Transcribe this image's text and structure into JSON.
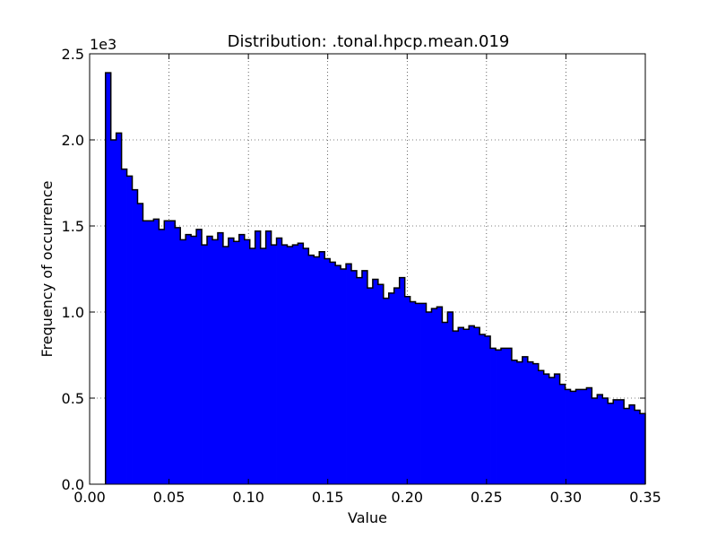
{
  "chart_data": {
    "type": "histogram",
    "title": "Distribution: .tonal.hpcp.mean.019",
    "xlabel": "Value",
    "ylabel": "Frequency of occurrence",
    "y_offset_label": "1e3",
    "xlim": [
      0.0,
      0.35
    ],
    "ylim": [
      0.0,
      2.5
    ],
    "x_ticks": [
      0.0,
      0.05,
      0.1,
      0.15,
      0.2,
      0.25,
      0.3,
      0.35
    ],
    "x_tick_labels": [
      "0.00",
      "0.05",
      "0.10",
      "0.15",
      "0.20",
      "0.25",
      "0.30",
      "0.35"
    ],
    "y_ticks": [
      0.0,
      0.5,
      1.0,
      1.5,
      2.0,
      2.5
    ],
    "y_tick_labels": [
      "0.0",
      "0.5",
      "1.0",
      "1.5",
      "2.0",
      "2.5"
    ],
    "grid": true,
    "fill_color": "#0000ff",
    "edge_color": "#000000",
    "bin_start": 0.01,
    "bin_end": 0.35,
    "values": [
      2.39,
      2.0,
      2.04,
      1.83,
      1.79,
      1.71,
      1.63,
      1.53,
      1.53,
      1.54,
      1.48,
      1.53,
      1.53,
      1.49,
      1.42,
      1.45,
      1.44,
      1.48,
      1.39,
      1.44,
      1.42,
      1.46,
      1.38,
      1.43,
      1.41,
      1.45,
      1.42,
      1.37,
      1.47,
      1.37,
      1.47,
      1.39,
      1.43,
      1.39,
      1.38,
      1.39,
      1.4,
      1.37,
      1.33,
      1.32,
      1.35,
      1.31,
      1.29,
      1.27,
      1.25,
      1.28,
      1.24,
      1.2,
      1.24,
      1.14,
      1.19,
      1.16,
      1.08,
      1.11,
      1.14,
      1.2,
      1.09,
      1.06,
      1.05,
      1.05,
      1.0,
      1.02,
      1.03,
      0.94,
      1.0,
      0.89,
      0.91,
      0.9,
      0.92,
      0.91,
      0.87,
      0.86,
      0.79,
      0.78,
      0.79,
      0.79,
      0.72,
      0.71,
      0.74,
      0.71,
      0.7,
      0.66,
      0.64,
      0.62,
      0.64,
      0.58,
      0.55,
      0.54,
      0.55,
      0.55,
      0.56,
      0.5,
      0.52,
      0.5,
      0.47,
      0.49,
      0.49,
      0.44,
      0.46,
      0.43,
      0.41
    ]
  }
}
